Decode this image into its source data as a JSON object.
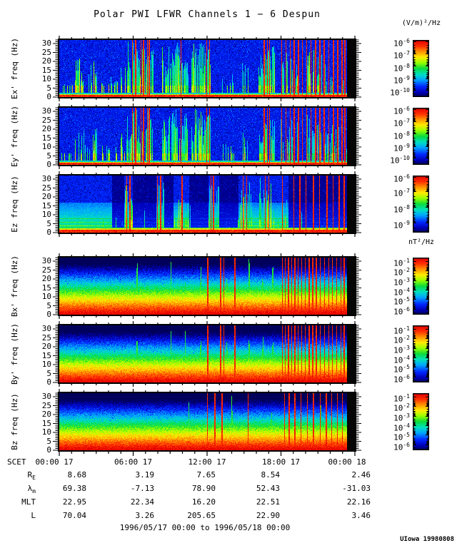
{
  "title": "Polar PWI LFWR Channels 1 − 6 Despun",
  "credit": "UIowa 19980808",
  "chart_data": {
    "type": "heatmap",
    "subtype": "spectrogram-stack",
    "freq_axis": {
      "unit": "Hz",
      "range": [
        0,
        32
      ],
      "ticks": [
        0,
        5,
        10,
        15,
        20,
        25,
        30
      ]
    },
    "time_axis": {
      "name": "SCET",
      "range_hours": [
        0,
        24
      ],
      "data_gap_hours": [
        23.35,
        24
      ],
      "ticks": [
        {
          "hour": 0,
          "label": "00:00 17"
        },
        {
          "hour": 6,
          "label": "06:00 17"
        },
        {
          "hour": 12,
          "label": "12:00 17"
        },
        {
          "hour": 18,
          "label": "18:00 17"
        },
        {
          "hour": 24,
          "label": "00:00 18"
        }
      ],
      "date_range": "1996/05/17 00:00 to 1996/05/18 00:00"
    },
    "colorbar_units": {
      "electric": "(V/m)²/Hz",
      "magnetic": "nT²/Hz"
    },
    "colormap": [
      "#00005a",
      "#0000b9",
      "#0028ff",
      "#00a5ff",
      "#00e1be",
      "#0adc3c",
      "#96ff00",
      "#ffeb00",
      "#ff9100",
      "#ff2d00",
      "#e10000"
    ],
    "colormap_stops": [
      0,
      0.08,
      0.18,
      0.3,
      0.4,
      0.5,
      0.6,
      0.7,
      0.8,
      0.9,
      1.0
    ],
    "panels": [
      {
        "id": "ex",
        "ylabel": "Ex' freq (Hz)",
        "field": "electric",
        "type": "E",
        "seed": 7,
        "colorbar": {
          "exponents": [
            -6,
            -7,
            -8,
            -9,
            -10
          ],
          "fracs": [
            0.03,
            0.24,
            0.46,
            0.68,
            0.89
          ]
        },
        "features": {
          "bursts": [
            [
              0.15,
              1.1,
              0.45,
              18
            ],
            [
              1.25,
              3.05,
              0.55,
              55
            ],
            [
              3.4,
              4.7,
              0.3,
              30
            ],
            [
              4.95,
              5.45,
              0.5,
              45
            ],
            [
              5.5,
              7.6,
              0.75,
              78
            ],
            [
              8.3,
              10.45,
              0.85,
              78
            ],
            [
              10.7,
              12.25,
              0.85,
              78
            ],
            [
              13.2,
              14.15,
              0.35,
              38
            ],
            [
              14.8,
              15.35,
              0.45,
              48
            ],
            [
              16.15,
              17.45,
              0.8,
              76
            ],
            [
              17.9,
              19.35,
              0.55,
              65
            ],
            [
              20.0,
              21.3,
              0.6,
              70
            ],
            [
              21.5,
              22.7,
              0.5,
              58
            ]
          ],
          "red_lines": [
            5.92,
            6.18,
            6.62,
            6.8,
            7.12,
            7.28,
            9.85,
            11.95,
            12.18,
            16.62,
            16.88,
            17.05,
            18.02,
            18.38,
            18.72,
            19.05,
            19.38,
            19.72,
            20.05,
            20.42,
            20.78,
            21.12,
            21.48,
            21.85,
            22.22,
            22.58,
            22.92,
            23.15
          ]
        }
      },
      {
        "id": "ey",
        "ylabel": "Ey' freq (Hz)",
        "field": "electric",
        "type": "E",
        "seed": 13,
        "colorbar": {
          "exponents": [
            -6,
            -7,
            -8,
            -9,
            -10
          ],
          "fracs": [
            0.03,
            0.24,
            0.46,
            0.68,
            0.89
          ]
        },
        "features": {
          "bursts": [
            [
              0.15,
              1.1,
              0.45,
              18
            ],
            [
              1.25,
              3.05,
              0.55,
              55
            ],
            [
              3.4,
              4.7,
              0.3,
              30
            ],
            [
              4.95,
              5.45,
              0.5,
              45
            ],
            [
              5.5,
              7.6,
              0.75,
              78
            ],
            [
              8.3,
              10.45,
              0.85,
              78
            ],
            [
              10.7,
              12.25,
              0.85,
              78
            ],
            [
              13.2,
              14.15,
              0.35,
              38
            ],
            [
              14.8,
              15.35,
              0.45,
              48
            ],
            [
              16.15,
              17.45,
              0.8,
              76
            ],
            [
              17.9,
              19.35,
              0.55,
              65
            ],
            [
              20.0,
              21.3,
              0.6,
              70
            ],
            [
              21.5,
              22.7,
              0.5,
              58
            ]
          ],
          "red_lines": [
            5.92,
            6.18,
            6.62,
            6.8,
            7.12,
            7.28,
            9.85,
            11.95,
            12.18,
            16.62,
            16.88,
            17.05,
            18.02,
            18.38,
            18.72,
            19.05,
            19.38,
            19.72,
            20.05,
            20.42,
            20.78,
            21.12,
            21.48,
            21.85,
            22.22,
            22.58,
            22.92,
            23.15
          ]
        }
      },
      {
        "id": "ez",
        "ylabel": "Ez freq (Hz)",
        "field": "electric",
        "type": "Ez",
        "seed": 17,
        "colorbar": {
          "exponents": [
            -6,
            -7,
            -8,
            -9
          ],
          "fracs": [
            0.03,
            0.28,
            0.56,
            0.84
          ]
        },
        "features": {
          "bursts": [
            [
              5.3,
              5.95,
              0.8,
              78
            ],
            [
              7.85,
              8.5,
              0.7,
              70
            ],
            [
              9.3,
              10.5,
              0.5,
              50
            ],
            [
              12.1,
              13.0,
              0.7,
              78
            ],
            [
              14.6,
              15.6,
              0.6,
              70
            ],
            [
              16.2,
              17.4,
              0.75,
              78
            ],
            [
              17.9,
              18.6,
              0.5,
              60
            ]
          ],
          "dark_regions": [
            [
              4.25,
              5.25
            ],
            [
              5.95,
              7.85
            ],
            [
              8.45,
              9.25
            ],
            [
              10.55,
              12.1
            ],
            [
              12.95,
              14.55
            ],
            [
              18.6,
              23.4
            ]
          ],
          "red_lines": [
            5.45,
            5.7,
            7.95,
            8.2,
            9.95,
            12.3,
            12.5,
            14.9,
            15.2,
            16.7,
            17.0,
            18.1,
            19.0,
            19.5,
            20.0,
            20.6,
            21.1,
            21.7,
            22.2,
            22.7,
            23.1
          ]
        }
      },
      {
        "id": "bx",
        "ylabel": "Bx' freq (Hz)",
        "field": "magnetic",
        "type": "B",
        "seed": 21,
        "colorbar": {
          "exponents": [
            -1,
            -2,
            -3,
            -4,
            -5,
            -6
          ],
          "fracs": [
            0.06,
            0.23,
            0.4,
            0.57,
            0.74,
            0.91
          ]
        },
        "features": {
          "green_spikes": [
            6.3,
            9.05,
            10.2,
            11.45,
            13.6,
            14.25,
            15.4,
            16.5,
            17.3
          ],
          "red_lines": [
            12.02,
            13.08,
            13.32,
            14.22,
            18.08,
            18.32,
            18.58,
            18.85,
            19.1,
            19.35,
            19.65,
            19.95,
            20.25,
            20.55,
            20.85,
            21.15,
            21.5,
            21.85,
            22.15,
            22.5,
            22.85,
            23.1
          ]
        }
      },
      {
        "id": "by",
        "ylabel": "By' freq (Hz)",
        "field": "magnetic",
        "type": "B",
        "seed": 31,
        "colorbar": {
          "exponents": [
            -1,
            -2,
            -3,
            -4,
            -5,
            -6
          ],
          "fracs": [
            0.06,
            0.23,
            0.4,
            0.57,
            0.74,
            0.91
          ]
        },
        "features": {
          "green_spikes": [
            6.3,
            9.05,
            10.2,
            11.45,
            13.6,
            14.25,
            15.4,
            16.5,
            17.3
          ],
          "red_lines": [
            12.02,
            13.08,
            13.32,
            14.22,
            18.08,
            18.32,
            18.58,
            18.85,
            19.1,
            19.35,
            19.65,
            19.95,
            20.25,
            20.55,
            20.85,
            21.15,
            21.5,
            21.85,
            22.15,
            22.5,
            22.85,
            23.1
          ]
        }
      },
      {
        "id": "bz",
        "ylabel": "Bz freq (Hz)",
        "field": "magnetic",
        "type": "B",
        "seed": 41,
        "colorbar": {
          "exponents": [
            -1,
            -2,
            -3,
            -4,
            -5,
            -6
          ],
          "fracs": [
            0.06,
            0.23,
            0.4,
            0.57,
            0.74,
            0.91
          ]
        },
        "features": {
          "green_spikes": [
            10.5,
            14.0,
            17.2,
            21.2
          ],
          "red_lines": [
            12.0,
            12.6,
            13.2,
            15.3,
            18.25,
            18.65,
            19.1,
            19.6,
            20.1,
            20.6,
            21.15,
            21.65,
            22.1,
            22.55,
            22.95
          ]
        }
      }
    ],
    "ephemeris": {
      "rows": [
        {
          "label": "R",
          "sub": "E",
          "values": [
            "8.68",
            "3.19",
            "7.65",
            "8.54",
            "2.46"
          ]
        },
        {
          "label": "λ",
          "sub": "m",
          "values": [
            "69.38",
            "-7.13",
            "78.90",
            "52.43",
            "-31.03"
          ]
        },
        {
          "label": "MLT",
          "sub": "",
          "values": [
            "22.95",
            "22.34",
            "16.20",
            "22.51",
            "22.16"
          ]
        },
        {
          "label": "L",
          "sub": "",
          "values": [
            "70.04",
            "3.26",
            "205.65",
            "22.90",
            "3.46"
          ]
        }
      ]
    }
  },
  "colors": {
    "background": "#ffffff",
    "frame": "#000000",
    "gap_fill": "#050505"
  }
}
